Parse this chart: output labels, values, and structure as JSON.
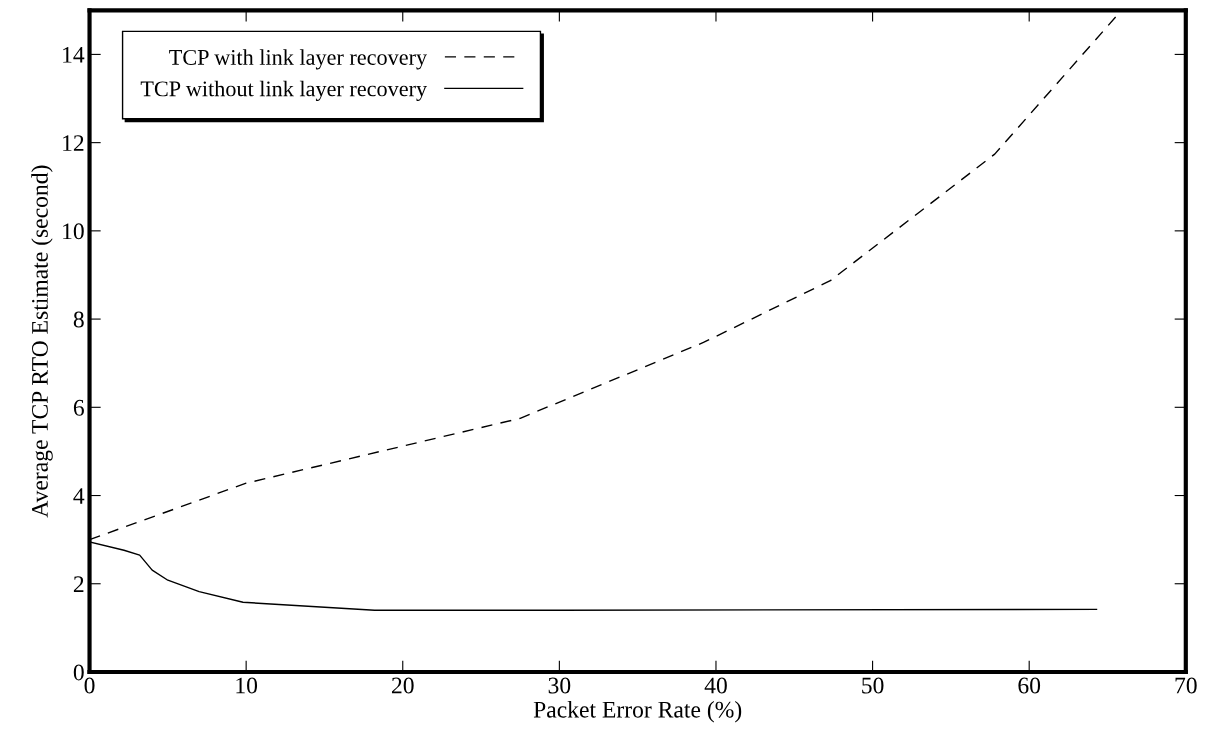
{
  "chart_data": {
    "type": "line",
    "xlabel": "Packet Error Rate (%)",
    "ylabel": "Average TCP RTO Estimate (second)",
    "xlim": [
      0,
      70
    ],
    "xticks": [
      0,
      10,
      20,
      30,
      40,
      50,
      60,
      70
    ],
    "ylim": [
      0,
      15
    ],
    "yticks": [
      0,
      2,
      4,
      6,
      8,
      10,
      12,
      14
    ],
    "grid": false,
    "legend": "top left",
    "series": [
      {
        "name": "TCP with link layer recovery",
        "color": "#000000",
        "line_style": "dashed",
        "x": [
          0,
          10,
          27.5,
          39.2,
          47.3,
          57.8,
          65.9
        ],
        "values": [
          3.0,
          4.28,
          5.75,
          7.47,
          8.87,
          11.74,
          15.0
        ]
      },
      {
        "name": "TCP without link layer recovery",
        "color": "#000000",
        "line_style": "solid",
        "x": [
          0,
          2.2,
          3.2,
          4.0,
          5.0,
          7.0,
          9.8,
          18.2,
          30,
          64.3
        ],
        "values": [
          2.95,
          2.76,
          2.65,
          2.31,
          2.08,
          1.82,
          1.58,
          1.4,
          1.4,
          1.42
        ]
      }
    ]
  }
}
